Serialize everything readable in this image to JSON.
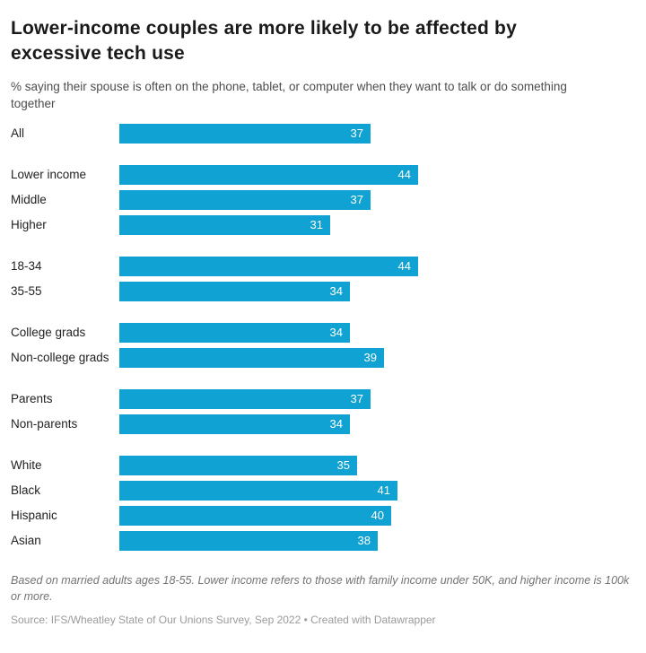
{
  "header": {
    "title": "Lower-income couples are more likely to be affected by excessive tech use",
    "subtitle": "% saying their spouse is often on the phone, tablet, or computer when they want to talk or do something together"
  },
  "chart_data": {
    "type": "bar",
    "orientation": "horizontal",
    "title": "Lower-income couples are more likely to be affected by excessive tech use",
    "subtitle": "% saying their spouse is often on the phone, tablet, or computer when they want to talk or do something together",
    "value_unit": "percent",
    "xlim": [
      0,
      44
    ],
    "grid": false,
    "legend": false,
    "bar_color": "#10a2d3",
    "value_label_color": "#ffffff",
    "groups": [
      {
        "name": "all",
        "rows": [
          {
            "label": "All",
            "value": 37
          }
        ]
      },
      {
        "name": "income",
        "rows": [
          {
            "label": "Lower income",
            "value": 44
          },
          {
            "label": "Middle",
            "value": 37
          },
          {
            "label": "Higher",
            "value": 31
          }
        ]
      },
      {
        "name": "age",
        "rows": [
          {
            "label": "18-34",
            "value": 44
          },
          {
            "label": "35-55",
            "value": 34
          }
        ]
      },
      {
        "name": "education",
        "rows": [
          {
            "label": "College grads",
            "value": 34
          },
          {
            "label": "Non-college grads",
            "value": 39
          }
        ]
      },
      {
        "name": "parenthood",
        "rows": [
          {
            "label": "Parents",
            "value": 37
          },
          {
            "label": "Non-parents",
            "value": 34
          }
        ]
      },
      {
        "name": "race",
        "rows": [
          {
            "label": "White",
            "value": 35
          },
          {
            "label": "Black",
            "value": 41
          },
          {
            "label": "Hispanic",
            "value": 40
          },
          {
            "label": "Asian",
            "value": 38
          }
        ]
      }
    ]
  },
  "footer": {
    "note": "Based on married adults ages 18-55. Lower income refers to those with family income under 50K, and higher income is 100k or more.",
    "source": "Source: IFS/Wheatley State of Our Unions Survey, Sep 2022 • Created with Datawrapper"
  }
}
